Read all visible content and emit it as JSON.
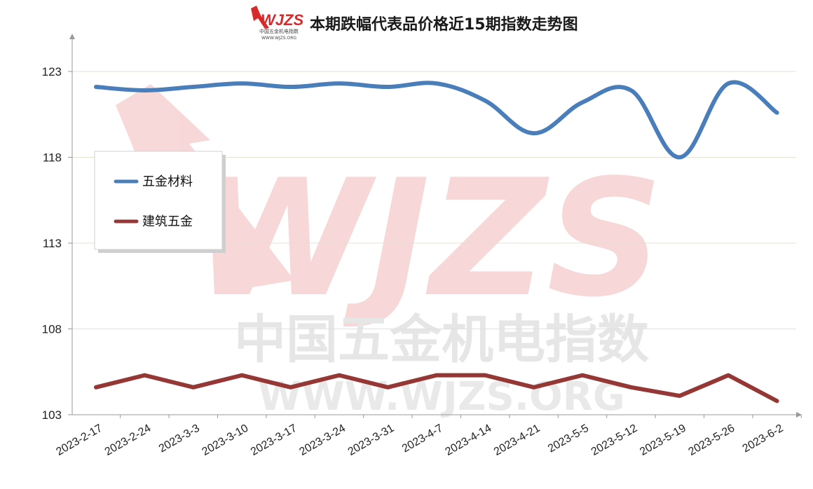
{
  "chart_data": {
    "type": "line",
    "title": "本期跌幅代表品价格近15期指数走势图",
    "categories": [
      "2023-2-17",
      "2023-2-24",
      "2023-3-3",
      "2023-3-10",
      "2023-3-17",
      "2023-3-24",
      "2023-3-31",
      "2023-4-7",
      "2023-4-14",
      "2023-4-21",
      "2023-5-5",
      "2023-5-12",
      "2023-5-19",
      "2023-5-26",
      "2023-6-2"
    ],
    "series": [
      {
        "name": "五金材料",
        "color": "#4a7ebb",
        "values": [
          122.1,
          121.9,
          122.1,
          122.3,
          122.1,
          122.3,
          122.1,
          122.3,
          121.3,
          119.4,
          121.2,
          121.9,
          118.0,
          122.3,
          120.6
        ]
      },
      {
        "name": "建筑五金",
        "color": "#953734",
        "values": [
          104.6,
          105.3,
          104.6,
          105.3,
          104.6,
          105.3,
          104.6,
          105.3,
          105.3,
          104.6,
          105.3,
          104.6,
          104.1,
          105.3,
          103.8
        ]
      }
    ],
    "yticks": [
      103,
      108,
      113,
      118,
      123
    ],
    "ylim": [
      103,
      125
    ],
    "grid": true,
    "legend_position": "left",
    "xlabel": "",
    "ylabel": ""
  },
  "logo": {
    "brand": "WJZS",
    "subtitle": "中国五金机电指数",
    "url": "WWW.WJZS.ORG"
  },
  "watermark": {
    "brand": "WJZS",
    "line1": "中国五金机电指数",
    "line2": "WWW.WJZS.ORG"
  }
}
